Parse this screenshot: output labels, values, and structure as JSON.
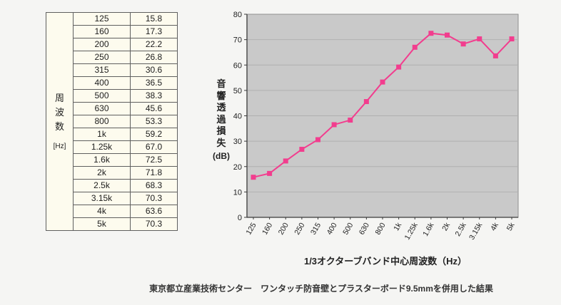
{
  "table": {
    "row_header": "周波数",
    "row_header_unit": "[Hz]",
    "col_freq_name": "frequency",
    "col_value_name": "transmission-loss",
    "rows": [
      [
        "125",
        "15.8"
      ],
      [
        "160",
        "17.3"
      ],
      [
        "200",
        "22.2"
      ],
      [
        "250",
        "26.8"
      ],
      [
        "315",
        "30.6"
      ],
      [
        "400",
        "36.5"
      ],
      [
        "500",
        "38.3"
      ],
      [
        "630",
        "45.6"
      ],
      [
        "800",
        "53.3"
      ],
      [
        "1k",
        "59.2"
      ],
      [
        "1.25k",
        "67.0"
      ],
      [
        "1.6k",
        "72.5"
      ],
      [
        "2k",
        "71.8"
      ],
      [
        "2.5k",
        "68.3"
      ],
      [
        "3.15k",
        "70.3"
      ],
      [
        "4k",
        "63.6"
      ],
      [
        "5k",
        "70.3"
      ]
    ]
  },
  "chart_data": {
    "type": "line",
    "categories": [
      "125",
      "160",
      "200",
      "250",
      "315",
      "400",
      "500",
      "630",
      "800",
      "1k",
      "1.25k",
      "1.6k",
      "2k",
      "2.5k",
      "3.15k",
      "4k",
      "5k"
    ],
    "values": [
      15.8,
      17.3,
      22.2,
      26.8,
      30.6,
      36.5,
      38.3,
      45.6,
      53.3,
      59.2,
      67.0,
      72.5,
      71.8,
      68.3,
      70.3,
      63.6,
      70.3
    ],
    "title": "",
    "xlabel": "1/3オクターブバンド中心周波数（Hz）",
    "ylabel_vertical": "音響透過損失",
    "ylabel_unit": "(dB)",
    "ylim": [
      0,
      80
    ],
    "ytick_step": 10,
    "grid": "horizontal",
    "legend": "none",
    "marker": "square",
    "line_color": "#f23d8e",
    "plot_bg": "#c9c9c9",
    "grid_color": "#b0b0b0",
    "axis_color": "#3a3a3a",
    "tick_text_color": "#222222"
  },
  "caption": "東京都立産業技術センター　ワンタッチ防音壁とプラスターボード9.5mmを併用した結果"
}
